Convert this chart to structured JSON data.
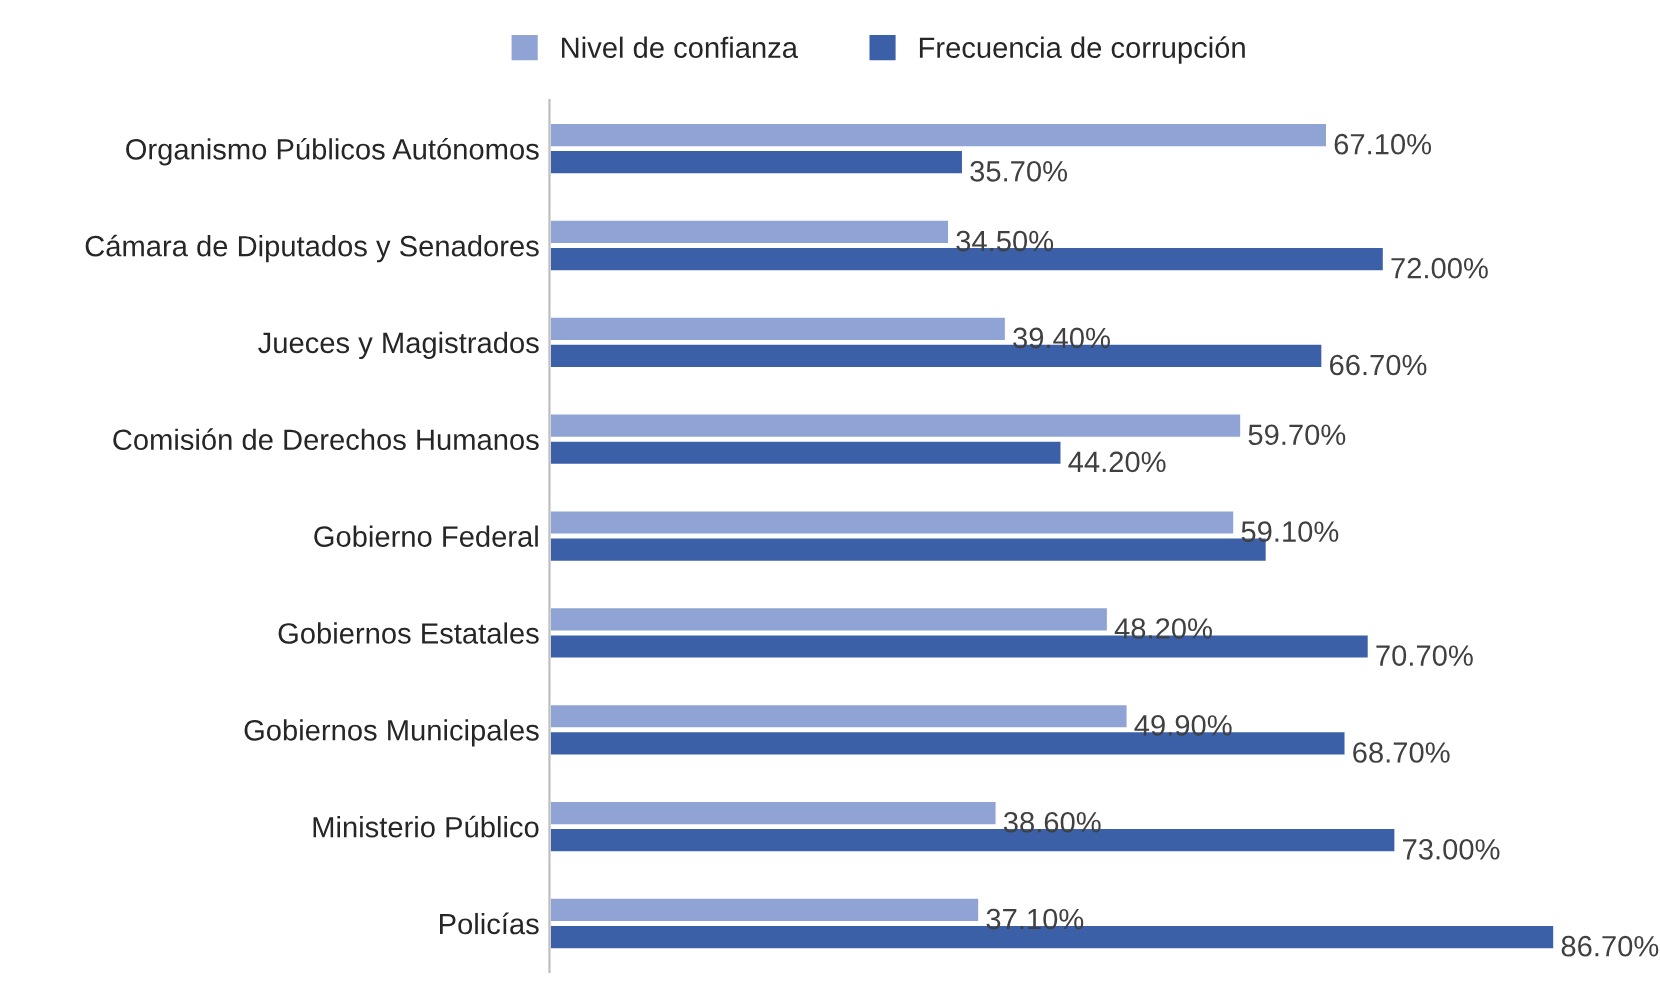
{
  "chart_data": {
    "type": "bar",
    "orientation": "horizontal",
    "legend": "top",
    "categories": [
      "Organismo Públicos Autónomos",
      "Cámara de Diputados y Senadores",
      "Jueces y Magistrados",
      "Comisión de Derechos Humanos",
      "Gobierno Federal",
      "Gobiernos Estatales",
      "Gobiernos Municipales",
      "Ministerio Público",
      "Policías"
    ],
    "series": [
      {
        "name": "Nivel de confianza",
        "color": "#8fa3d4",
        "values": [
          67.1,
          34.5,
          39.4,
          59.7,
          59.1,
          48.2,
          49.9,
          38.6,
          37.1
        ],
        "value_labels": [
          "67.10%",
          "34.50%",
          "39.40%",
          "59.70%",
          "59.10%",
          "48.20%",
          "49.90%",
          "38.60%",
          "37.10%"
        ]
      },
      {
        "name": "Frecuencia de corrupción",
        "color": "#3b60a8",
        "values": [
          35.7,
          72.0,
          66.7,
          44.2,
          61.9,
          70.7,
          68.7,
          73.0,
          86.7
        ],
        "value_labels": [
          "35.70%",
          "72.00%",
          "66.70%",
          "44.20%",
          null,
          "70.70%",
          "68.70%",
          "73.00%",
          "86.70%"
        ]
      }
    ]
  }
}
